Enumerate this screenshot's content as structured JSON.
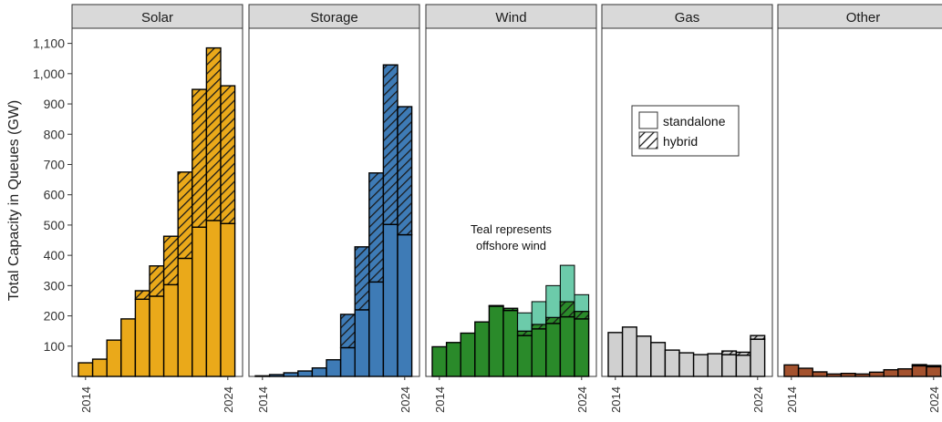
{
  "chart_data": {
    "type": "bar",
    "ylabel": "Total Capacity in Queues (GW)",
    "xlabel": "",
    "ylim": [
      0,
      1150
    ],
    "yticks": [
      100,
      200,
      300,
      400,
      500,
      600,
      700,
      800,
      900,
      "1,000",
      "1,100"
    ],
    "years": [
      2014,
      2015,
      2016,
      2017,
      2018,
      2019,
      2020,
      2021,
      2022,
      2023,
      2024
    ],
    "x_tick_labels": [
      "2014",
      "2024"
    ],
    "legend": {
      "placement": "inside Gas panel",
      "entries": [
        "standalone",
        "hybrid"
      ]
    },
    "annotation": {
      "panel": "Wind",
      "lines": [
        "Teal represents",
        "offshore wind"
      ]
    },
    "panels": [
      {
        "name": "Solar",
        "color": "#EAA91A",
        "standalone": [
          45,
          57,
          120,
          190,
          255,
          265,
          303,
          390,
          493,
          515,
          505
        ],
        "hybrid": [
          0,
          0,
          0,
          0,
          28,
          100,
          160,
          285,
          455,
          570,
          455
        ]
      },
      {
        "name": "Storage",
        "color": "#3E7BB6",
        "standalone": [
          2,
          6,
          12,
          18,
          28,
          55,
          95,
          220,
          312,
          502,
          468
        ],
        "hybrid": [
          0,
          0,
          0,
          0,
          0,
          0,
          110,
          208,
          360,
          527,
          423
        ]
      },
      {
        "name": "Wind",
        "color": "#2A8A2A",
        "offshore_color": "#6CCBAA",
        "standalone": [
          98,
          112,
          143,
          180,
          232,
          218,
          135,
          157,
          175,
          197,
          190
        ],
        "hybrid": [
          0,
          0,
          0,
          0,
          2,
          7,
          15,
          15,
          20,
          50,
          25
        ],
        "offshore": [
          0,
          0,
          0,
          0,
          0,
          0,
          60,
          75,
          105,
          120,
          55
        ]
      },
      {
        "name": "Gas",
        "color": "#D0D0D0",
        "standalone": [
          145,
          163,
          133,
          112,
          87,
          78,
          72,
          75,
          72,
          70,
          123
        ],
        "hybrid": [
          0,
          0,
          0,
          0,
          0,
          0,
          0,
          0,
          12,
          10,
          12
        ]
      },
      {
        "name": "Other",
        "color": "#A4522E",
        "standalone": [
          38,
          27,
          15,
          8,
          10,
          8,
          14,
          22,
          25,
          35,
          32
        ],
        "hybrid": [
          0,
          0,
          0,
          0,
          0,
          0,
          0,
          0,
          0,
          4,
          4
        ]
      }
    ]
  }
}
